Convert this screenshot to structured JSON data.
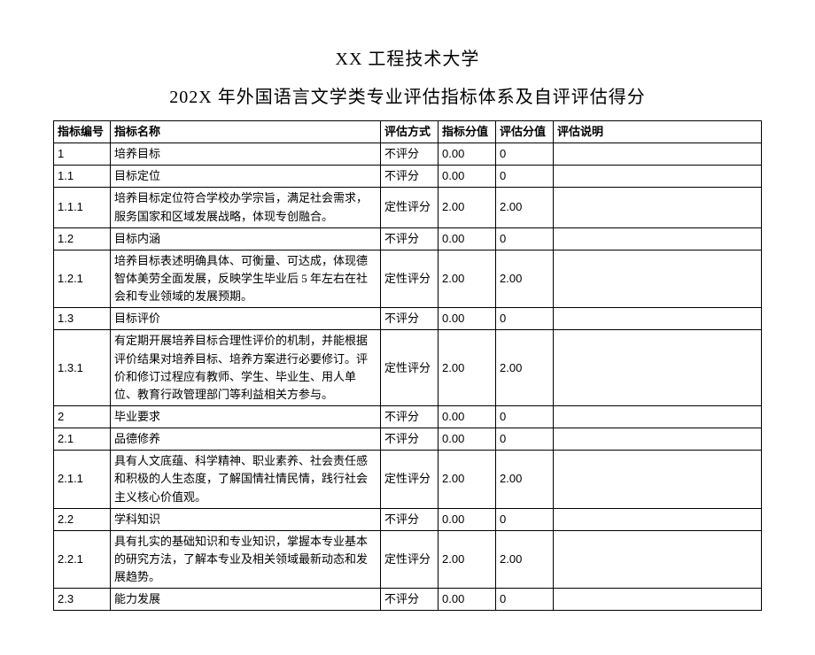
{
  "title_line1": "XX 工程技术大学",
  "title_line2": "202X 年外国语言文学类专业评估指标体系及自评评估得分",
  "columns": [
    "指标编号",
    "指标名称",
    "评估方式",
    "指标分值",
    "评估分值",
    "评估说明"
  ],
  "rows": [
    {
      "id": "1",
      "name": "培养目标",
      "mode": "不评分",
      "score": "0.00",
      "eval": "0",
      "desc": ""
    },
    {
      "id": "1.1",
      "name": "目标定位",
      "mode": "不评分",
      "score": "0.00",
      "eval": "0",
      "desc": ""
    },
    {
      "id": "1.1.1",
      "name": "培养目标定位符合学校办学宗旨，满足社会需求，服务国家和区域发展战略，体现专创融合。",
      "mode": "定性评分",
      "score": "2.00",
      "eval": "2.00",
      "desc": ""
    },
    {
      "id": "1.2",
      "name": "目标内涵",
      "mode": "不评分",
      "score": "0.00",
      "eval": "0",
      "desc": ""
    },
    {
      "id": "1.2.1",
      "name": "培养目标表述明确具体、可衡量、可达成，体现德智体美劳全面发展，反映学生毕业后 5 年左右在社会和专业领域的发展预期。",
      "mode": "定性评分",
      "score": "2.00",
      "eval": "2.00",
      "desc": ""
    },
    {
      "id": "1.3",
      "name": "目标评价",
      "mode": "不评分",
      "score": "0.00",
      "eval": "0",
      "desc": ""
    },
    {
      "id": "1.3.1",
      "name": "有定期开展培养目标合理性评价的机制，并能根据评价结果对培养目标、培养方案进行必要修订。评价和修订过程应有教师、学生、毕业生、用人单位、教育行政管理部门等利益相关方参与。",
      "mode": "定性评分",
      "score": "2.00",
      "eval": "2.00",
      "desc": ""
    },
    {
      "id": "2",
      "name": "毕业要求",
      "mode": "不评分",
      "score": "0.00",
      "eval": "0",
      "desc": ""
    },
    {
      "id": "2.1",
      "name": "品德修养",
      "mode": "不评分",
      "score": "0.00",
      "eval": "0",
      "desc": ""
    },
    {
      "id": "2.1.1",
      "name": "具有人文底蕴、科学精神、职业素养、社会责任感和积极的人生态度，了解国情社情民情，践行社会主义核心价值观。",
      "mode": "定性评分",
      "score": "2.00",
      "eval": "2.00",
      "desc": ""
    },
    {
      "id": "2.2",
      "name": "学科知识",
      "mode": "不评分",
      "score": "0.00",
      "eval": "0",
      "desc": ""
    },
    {
      "id": "2.2.1",
      "name": "具有扎实的基础知识和专业知识，掌握本专业基本的研究方法，了解本专业及相关领域最新动态和发展趋势。",
      "mode": "定性评分",
      "score": "2.00",
      "eval": "2.00",
      "desc": ""
    },
    {
      "id": "2.3",
      "name": "能力发展",
      "mode": "不评分",
      "score": "0.00",
      "eval": "0",
      "desc": ""
    }
  ]
}
